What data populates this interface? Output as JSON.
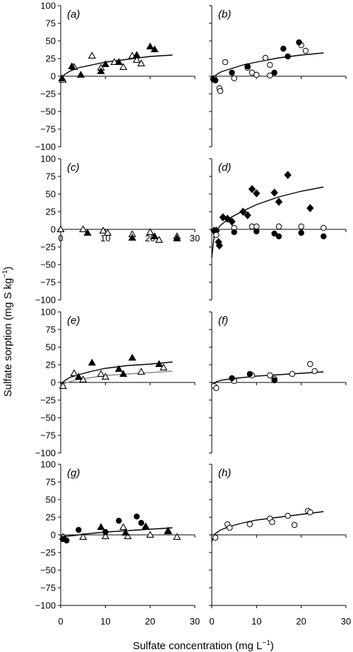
{
  "figure": {
    "ylabel": "Sulfate sorption (mg S kg",
    "ylabel_sup": "−1",
    "ylabel_close": ")",
    "xlabel": "Sulfate concentration (mg L",
    "xlabel_sup": "−1",
    "xlabel_close": ")"
  },
  "chart_data": [
    {
      "type": "scatter",
      "panel": "(a)",
      "xlim": [
        0,
        30
      ],
      "ylim": [
        -100,
        100
      ],
      "yticks": [
        "100",
        "75",
        "50",
        "25",
        "0",
        "−25",
        "−50",
        "−75",
        "−100"
      ],
      "xticks": [],
      "series": [
        {
          "marker": "triangle-open",
          "points": [
            [
              0.5,
              -5
            ],
            [
              3,
              13
            ],
            [
              7,
              29
            ],
            [
              9,
              12
            ],
            [
              12,
              20
            ],
            [
              14,
              13
            ],
            [
              16,
              29
            ],
            [
              17,
              23
            ],
            [
              18,
              18
            ]
          ]
        },
        {
          "marker": "triangle-filled",
          "points": [
            [
              0.3,
              -3
            ],
            [
              2.5,
              14
            ],
            [
              4.5,
              2
            ],
            [
              9,
              7
            ],
            [
              10,
              17
            ],
            [
              13,
              20
            ],
            [
              17,
              30
            ],
            [
              20,
              42
            ],
            [
              21,
              38
            ]
          ]
        }
      ],
      "curves": [
        {
          "color": "#000000",
          "points": [
            [
              0,
              -5
            ],
            [
              0.5,
              0
            ],
            [
              1,
              3
            ],
            [
              2,
              7
            ],
            [
              4,
              12
            ],
            [
              7,
              16
            ],
            [
              10,
              20
            ],
            [
              15,
              24
            ],
            [
              20,
              28
            ],
            [
              25,
              30
            ]
          ]
        }
      ]
    },
    {
      "type": "scatter",
      "panel": "(b)",
      "xlim": [
        0,
        30
      ],
      "ylim": [
        -100,
        100
      ],
      "yticks": [],
      "xticks": [],
      "series": [
        {
          "marker": "circle-open",
          "points": [
            [
              0.5,
              -3
            ],
            [
              1.7,
              -17
            ],
            [
              1.9,
              -21
            ],
            [
              3,
              20
            ],
            [
              5,
              -3
            ],
            [
              8,
              12
            ],
            [
              9,
              5
            ],
            [
              10,
              2
            ],
            [
              12,
              26
            ],
            [
              13,
              16
            ],
            [
              13,
              1
            ],
            [
              20,
              44
            ],
            [
              21,
              36
            ]
          ]
        },
        {
          "marker": "circle-filled",
          "points": [
            [
              0.3,
              -4
            ],
            [
              0.8,
              -6
            ],
            [
              4.5,
              5
            ],
            [
              8,
              14
            ],
            [
              14,
              5
            ],
            [
              16,
              39
            ],
            [
              17,
              28
            ],
            [
              19.5,
              48
            ]
          ]
        }
      ],
      "curves": [
        {
          "color": "#000000",
          "points": [
            [
              0,
              -10
            ],
            [
              0.3,
              -3
            ],
            [
              1,
              2
            ],
            [
              2,
              6
            ],
            [
              4,
              10
            ],
            [
              7,
              16
            ],
            [
              10,
              20
            ],
            [
              15,
              26
            ],
            [
              20,
              30
            ],
            [
              25,
              33
            ]
          ]
        }
      ]
    },
    {
      "type": "scatter",
      "panel": "(c)",
      "xlim": [
        0,
        30
      ],
      "ylim": [
        -100,
        100
      ],
      "yticks": [
        "100",
        "75",
        "50",
        "25",
        "0",
        "−25",
        "−50",
        "−75",
        "−100"
      ],
      "xticks": [
        "0",
        "10",
        "20",
        "30"
      ],
      "series": [
        {
          "marker": "triangle-open",
          "points": [
            [
              0,
              0
            ],
            [
              5,
              0
            ],
            [
              9.5,
              -2
            ],
            [
              10.5,
              -5
            ],
            [
              16,
              -7
            ],
            [
              20,
              -4
            ],
            [
              22,
              -15
            ],
            [
              26,
              -10
            ]
          ]
        },
        {
          "marker": "triangle-filled",
          "points": [
            [
              6,
              -5
            ],
            [
              16,
              -12
            ],
            [
              21,
              -10
            ],
            [
              26,
              -13
            ]
          ]
        }
      ],
      "curves": []
    },
    {
      "type": "scatter",
      "panel": "(d)",
      "xlim": [
        0,
        30
      ],
      "ylim": [
        -100,
        100
      ],
      "yticks": [],
      "xticks": [],
      "series": [
        {
          "marker": "diamond-filled",
          "points": [
            [
              0.5,
              -2
            ],
            [
              1,
              -2
            ],
            [
              1.5,
              -18
            ],
            [
              1.7,
              -23
            ],
            [
              2.5,
              17
            ],
            [
              3.5,
              15
            ],
            [
              4.5,
              11
            ],
            [
              7,
              25
            ],
            [
              8,
              20
            ],
            [
              9,
              57
            ],
            [
              10,
              51
            ],
            [
              14,
              52
            ],
            [
              15,
              39
            ],
            [
              17,
              77
            ],
            [
              22,
              30
            ]
          ]
        },
        {
          "marker": "circle-open",
          "points": [
            [
              1,
              -8
            ],
            [
              5,
              2
            ],
            [
              9,
              4
            ],
            [
              10,
              4
            ],
            [
              15,
              4
            ],
            [
              20,
              4
            ],
            [
              25,
              2
            ]
          ]
        },
        {
          "marker": "circle-filled",
          "points": [
            [
              5,
              -4
            ],
            [
              10,
              -3
            ],
            [
              14,
              -6
            ],
            [
              15,
              -10
            ],
            [
              20,
              -5
            ],
            [
              25,
              -10
            ]
          ]
        }
      ],
      "curves": [
        {
          "color": "#000000",
          "points": [
            [
              0,
              -40
            ],
            [
              0.5,
              -10
            ],
            [
              1,
              -2
            ],
            [
              2,
              6
            ],
            [
              4,
              16
            ],
            [
              7,
              26
            ],
            [
              10,
              35
            ],
            [
              15,
              46
            ],
            [
              20,
              54
            ],
            [
              25,
              60
            ]
          ]
        }
      ]
    },
    {
      "type": "scatter",
      "panel": "(e)",
      "xlim": [
        0,
        30
      ],
      "ylim": [
        -100,
        100
      ],
      "yticks": [
        "100",
        "75",
        "50",
        "25",
        "0",
        "−25",
        "−50",
        "−75",
        "−100"
      ],
      "xticks": [],
      "series": [
        {
          "marker": "triangle-open",
          "points": [
            [
              0.5,
              -5
            ],
            [
              3,
              13
            ],
            [
              5,
              4
            ],
            [
              9,
              12
            ],
            [
              10,
              8
            ],
            [
              18,
              15
            ],
            [
              23,
              21
            ]
          ]
        },
        {
          "marker": "triangle-filled",
          "points": [
            [
              4,
              8
            ],
            [
              7,
              28
            ],
            [
              13,
              19
            ],
            [
              14,
              12
            ],
            [
              16,
              35
            ],
            [
              22,
              26
            ]
          ]
        }
      ],
      "curves": [
        {
          "color": "#000000",
          "points": [
            [
              0,
              -2
            ],
            [
              1,
              3
            ],
            [
              2,
              7
            ],
            [
              4,
              11
            ],
            [
              7,
              16
            ],
            [
              10,
              20
            ],
            [
              15,
              24
            ],
            [
              20,
              26
            ],
            [
              25,
              29
            ]
          ]
        },
        {
          "color": "#888888",
          "points": [
            [
              0,
              -4
            ],
            [
              1,
              -1
            ],
            [
              2,
              1
            ],
            [
              4,
              4
            ],
            [
              7,
              7
            ],
            [
              10,
              10
            ],
            [
              15,
              12
            ],
            [
              20,
              14
            ],
            [
              25,
              16
            ]
          ]
        }
      ]
    },
    {
      "type": "scatter",
      "panel": "(f)",
      "xlim": [
        0,
        30
      ],
      "ylim": [
        -100,
        100
      ],
      "yticks": [],
      "xticks": [],
      "series": [
        {
          "marker": "circle-open",
          "points": [
            [
              0.5,
              -5
            ],
            [
              1,
              -8
            ],
            [
              5,
              2
            ],
            [
              9,
              10
            ],
            [
              13,
              10
            ],
            [
              14,
              5
            ],
            [
              18,
              12
            ],
            [
              22,
              26
            ],
            [
              23,
              16
            ]
          ]
        },
        {
          "marker": "circle-filled",
          "points": [
            [
              4.5,
              6
            ],
            [
              8.5,
              12
            ],
            [
              14,
              3
            ]
          ]
        }
      ],
      "curves": [
        {
          "color": "#000000",
          "points": [
            [
              0,
              -4
            ],
            [
              0.5,
              -1
            ],
            [
              1,
              1
            ],
            [
              2,
              3
            ],
            [
              4,
              5
            ],
            [
              7,
              7
            ],
            [
              10,
              9
            ],
            [
              15,
              11
            ],
            [
              20,
              13
            ],
            [
              25,
              15
            ]
          ]
        }
      ]
    },
    {
      "type": "scatter",
      "panel": "(g)",
      "xlim": [
        0,
        30
      ],
      "ylim": [
        -100,
        100
      ],
      "yticks": [
        "100",
        "75",
        "50",
        "25",
        "0",
        "−25",
        "−50",
        "−75",
        "−100"
      ],
      "xticks": [
        "0",
        "10",
        "20",
        "30"
      ],
      "series": [
        {
          "marker": "triangle-open",
          "points": [
            [
              0.5,
              -3
            ],
            [
              5,
              -3
            ],
            [
              10,
              -2
            ],
            [
              14,
              11
            ],
            [
              15,
              -2
            ],
            [
              20,
              0
            ],
            [
              24,
              5
            ],
            [
              26,
              -3
            ]
          ]
        },
        {
          "marker": "triangle-filled",
          "points": [
            [
              1,
              -6
            ],
            [
              9,
              11
            ],
            [
              14.5,
              3
            ],
            [
              19,
              12
            ],
            [
              24,
              6
            ]
          ]
        },
        {
          "marker": "circle-filled",
          "points": [
            [
              0.5,
              -6
            ],
            [
              1.3,
              -8
            ],
            [
              4,
              7
            ],
            [
              10,
              4
            ],
            [
              13,
              20
            ],
            [
              17,
              26
            ],
            [
              18,
              17
            ]
          ]
        }
      ],
      "curves": [
        {
          "color": "#000000",
          "points": [
            [
              0,
              -2
            ],
            [
              0.5,
              -3
            ],
            [
              1,
              -2
            ],
            [
              3,
              -1
            ],
            [
              5,
              1
            ],
            [
              10,
              4
            ],
            [
              15,
              6
            ],
            [
              20,
              8
            ],
            [
              25,
              10
            ]
          ]
        }
      ]
    },
    {
      "type": "scatter",
      "panel": "(h)",
      "xlim": [
        0,
        30
      ],
      "ylim": [
        -100,
        100
      ],
      "yticks": [],
      "xticks": [
        "0",
        "10",
        "20",
        "30"
      ],
      "series": [
        {
          "marker": "circle-open",
          "points": [
            [
              0.5,
              -3
            ],
            [
              0.8,
              -4
            ],
            [
              3.5,
              15
            ],
            [
              4,
              10
            ],
            [
              8.5,
              15
            ],
            [
              13,
              23
            ],
            [
              13.5,
              18
            ],
            [
              17,
              27
            ],
            [
              18.5,
              14
            ],
            [
              21.5,
              34
            ],
            [
              22,
              32
            ]
          ]
        }
      ],
      "curves": [
        {
          "color": "#000000",
          "points": [
            [
              0,
              -10
            ],
            [
              0.3,
              -2
            ],
            [
              1,
              3
            ],
            [
              2,
              7
            ],
            [
              4,
              12
            ],
            [
              7,
              17
            ],
            [
              10,
              21
            ],
            [
              15,
              25
            ],
            [
              20,
              29
            ],
            [
              25,
              33
            ]
          ]
        }
      ]
    }
  ]
}
